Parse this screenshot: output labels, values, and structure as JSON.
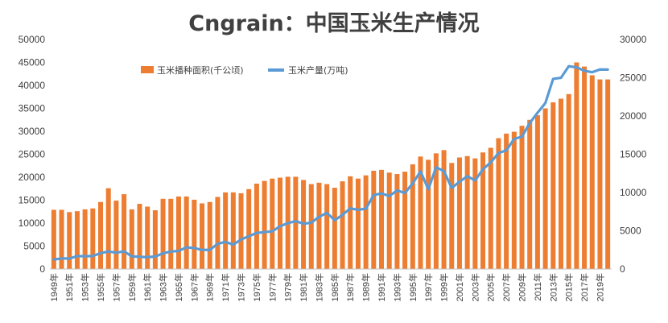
{
  "chart_data": {
    "type": "bar+line",
    "title": "Cngrain：中国玉米生产情况",
    "categories": [
      "1949年",
      "1950年",
      "1951年",
      "1952年",
      "1953年",
      "1954年",
      "1955年",
      "1956年",
      "1957年",
      "1958年",
      "1959年",
      "1960年",
      "1961年",
      "1962年",
      "1963年",
      "1964年",
      "1965年",
      "1966年",
      "1967年",
      "1968年",
      "1969年",
      "1970年",
      "1971年",
      "1972年",
      "1973年",
      "1974年",
      "1975年",
      "1976年",
      "1977年",
      "1978年",
      "1979年",
      "1980年",
      "1981年",
      "1982年",
      "1983年",
      "1984年",
      "1985年",
      "1986年",
      "1987年",
      "1988年",
      "1989年",
      "1990年",
      "1991年",
      "1992年",
      "1993年",
      "1994年",
      "1995年",
      "1996年",
      "1997年",
      "1998年",
      "1999年",
      "2000年",
      "2001年",
      "2002年",
      "2003年",
      "2004年",
      "2005年",
      "2006年",
      "2007年",
      "2008年",
      "2009年",
      "2010年",
      "2011年",
      "2012年",
      "2013年",
      "2014年",
      "2015年",
      "2016年",
      "2017年",
      "2018年",
      "2019年",
      "2020年"
    ],
    "visible_tick_labels": [
      "1949年",
      "1951年",
      "1953年",
      "1955年",
      "1957年",
      "1959年",
      "1961年",
      "1963年",
      "1965年",
      "1967年",
      "1969年",
      "1971年",
      "1973年",
      "1975年",
      "1977年",
      "1979年",
      "1981年",
      "1983年",
      "1985年",
      "1987年",
      "1989年",
      "1991年",
      "1993年",
      "1995年",
      "1997年",
      "1999年",
      "2001年",
      "2003年",
      "2005年",
      "2007年",
      "2009年",
      "2011年",
      "2013年",
      "2015年",
      "2017年",
      "2019年"
    ],
    "series": [
      {
        "name": "玉米播种面积(千公顷)",
        "type": "bar",
        "axis": "left",
        "color": "#ED7D31",
        "values": [
          12900,
          12900,
          12400,
          12600,
          13000,
          13200,
          14600,
          17600,
          14900,
          16300,
          13000,
          14200,
          13600,
          12800,
          15300,
          15300,
          15800,
          15800,
          15100,
          14300,
          14600,
          15700,
          16700,
          16700,
          16500,
          17400,
          18600,
          19200,
          19700,
          19900,
          20100,
          20100,
          19400,
          18500,
          18800,
          18500,
          17700,
          19100,
          20200,
          19700,
          20400,
          21400,
          21600,
          21000,
          20700,
          21200,
          22800,
          24500,
          23800,
          25200,
          25900,
          23100,
          24300,
          24600,
          24100,
          25400,
          26400,
          28500,
          29500,
          29900,
          31200,
          32500,
          33500,
          35000,
          36300,
          37100,
          38100,
          45000,
          44100,
          42200,
          41300,
          41300
        ]
      },
      {
        "name": "玉米产量(万吨)",
        "type": "line",
        "axis": "right",
        "color": "#5B9BD5",
        "values": [
          1240,
          1390,
          1370,
          1690,
          1670,
          1710,
          2070,
          2300,
          2140,
          2310,
          1660,
          1600,
          1550,
          1630,
          2060,
          2280,
          2370,
          2840,
          2740,
          2500,
          2500,
          3300,
          3540,
          3200,
          3860,
          4290,
          4720,
          4820,
          4930,
          5590,
          6000,
          6260,
          5920,
          6060,
          6820,
          7340,
          6380,
          7090,
          7920,
          7740,
          7890,
          9680,
          9880,
          9540,
          10270,
          9930,
          11200,
          12750,
          10430,
          13300,
          12800,
          10600,
          11410,
          12130,
          11580,
          13030,
          13940,
          15160,
          15510,
          17000,
          17300,
          19080,
          20420,
          21690,
          24850,
          24990,
          26500,
          26360,
          25910,
          25720,
          26080,
          26070
        ]
      }
    ],
    "y_left": {
      "min": 0,
      "max": 50000,
      "ticks": [
        0,
        5000,
        10000,
        15000,
        20000,
        25000,
        30000,
        35000,
        40000,
        45000,
        50000
      ]
    },
    "y_right": {
      "min": 0,
      "max": 30000,
      "ticks": [
        0,
        5000,
        10000,
        15000,
        20000,
        25000,
        30000
      ]
    },
    "legend_position": "top-left inside plot",
    "grid": false
  }
}
